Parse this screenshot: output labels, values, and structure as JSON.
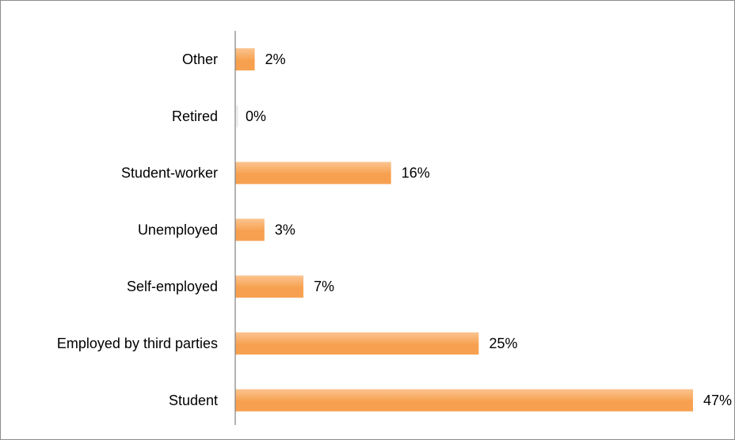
{
  "chart_data": {
    "type": "bar",
    "orientation": "horizontal",
    "categories": [
      "Other",
      "Retired",
      "Student-worker",
      "Unemployed",
      "Self-employed",
      "Employed by third parties",
      "Student"
    ],
    "values": [
      2,
      0,
      16,
      3,
      7,
      25,
      47
    ],
    "value_labels": [
      "2%",
      "0%",
      "16%",
      "3%",
      "7%",
      "25%",
      "47%"
    ],
    "unit": "%",
    "xlim": [
      0,
      47
    ],
    "grid": false,
    "legend": "none",
    "bar_color": "#f7a150",
    "bar_color_light": "#fbc490"
  }
}
